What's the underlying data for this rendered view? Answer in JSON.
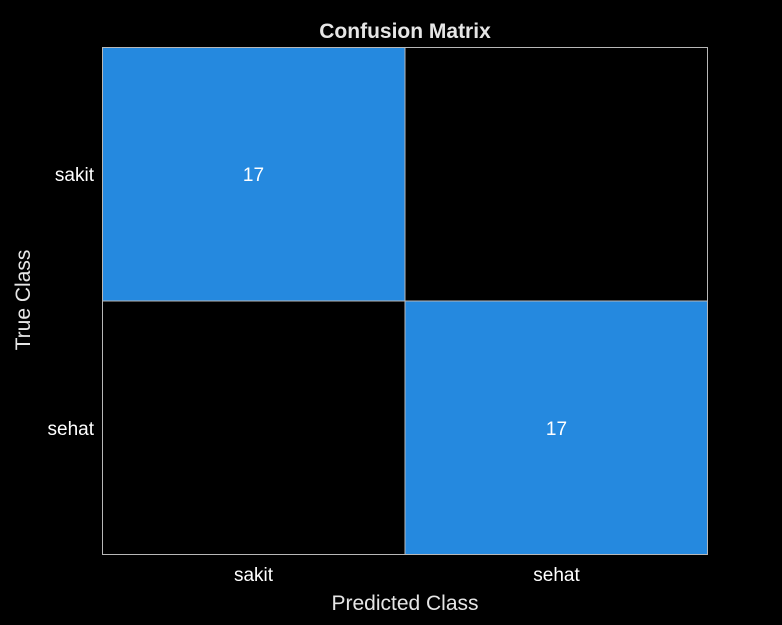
{
  "colors": {
    "background": "#000000",
    "filled_cell": "#2589df",
    "empty_cell": "#000000",
    "grid_line": "#b8b8b8"
  },
  "chart_data": {
    "type": "heatmap",
    "title": "Confusion Matrix",
    "xlabel": "Predicted Class",
    "ylabel": "True Class",
    "x_categories": [
      "sakit",
      "sehat"
    ],
    "y_categories": [
      "sakit",
      "sehat"
    ],
    "values": [
      [
        17,
        0
      ],
      [
        0,
        17
      ]
    ],
    "cell_labels": [
      [
        "17",
        ""
      ],
      [
        "",
        "17"
      ]
    ],
    "grid": true,
    "legend": "none"
  }
}
